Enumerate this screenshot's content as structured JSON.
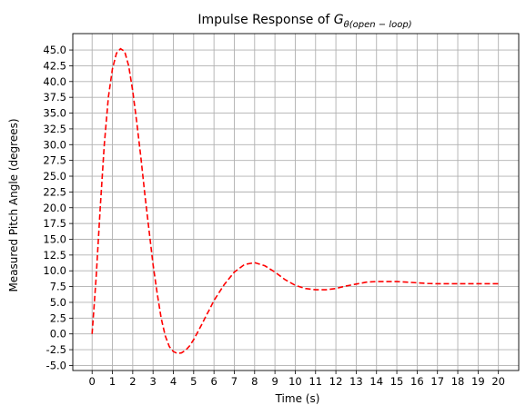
{
  "chart_data": {
    "type": "line",
    "title": {
      "prefix": "Impulse Response of ",
      "symbol": "G",
      "subscript": "θ(open − loop)"
    },
    "xlabel": "Time (s)",
    "ylabel": "Measured Pitch Angle (degrees)",
    "xlim": [
      -0.95,
      21.0
    ],
    "ylim": [
      -5.8,
      47.6
    ],
    "xticks": [
      "0",
      "1",
      "2",
      "3",
      "4",
      "5",
      "6",
      "7",
      "8",
      "9",
      "10",
      "11",
      "12",
      "13",
      "14",
      "15",
      "16",
      "17",
      "18",
      "19",
      "20"
    ],
    "yticks": [
      "-5.0",
      "-2.5",
      "0.0",
      "2.5",
      "5.0",
      "7.5",
      "10.0",
      "12.5",
      "15.0",
      "17.5",
      "20.0",
      "22.5",
      "25.0",
      "27.5",
      "30.0",
      "32.5",
      "35.0",
      "37.5",
      "40.0",
      "42.5",
      "45.0"
    ],
    "grid": true,
    "colors": {
      "series": "#ff0000",
      "grid": "#b0b0b0"
    },
    "series": [
      {
        "line_style": "dashed",
        "x": [
          0,
          0.2,
          0.4,
          0.6,
          0.8,
          1.0,
          1.2,
          1.4,
          1.6,
          1.8,
          2.0,
          2.2,
          2.4,
          2.6,
          2.8,
          3.0,
          3.2,
          3.4,
          3.6,
          3.8,
          4.0,
          4.2,
          4.4,
          4.6,
          4.8,
          5.0,
          5.2,
          5.4,
          5.6,
          5.8,
          6.0,
          6.5,
          7.0,
          7.5,
          8.0,
          8.5,
          9.0,
          9.5,
          10.0,
          10.5,
          11.0,
          11.5,
          12.0,
          12.5,
          13.0,
          13.5,
          14.0,
          14.5,
          15.0,
          15.5,
          16.0,
          16.5,
          17.0,
          17.5,
          18.0,
          18.5,
          19.0,
          19.5,
          20.0
        ],
        "y": [
          0,
          9,
          20,
          30,
          37.5,
          42,
          44.5,
          45.2,
          44.8,
          42.5,
          38.5,
          33.5,
          28,
          22,
          16.5,
          11,
          6.5,
          2.5,
          -0.3,
          -2.0,
          -2.8,
          -3.1,
          -3.0,
          -2.6,
          -1.9,
          -0.9,
          0.3,
          1.5,
          2.8,
          4.0,
          5.3,
          7.8,
          9.8,
          11.0,
          11.3,
          10.8,
          9.8,
          8.6,
          7.7,
          7.2,
          7.0,
          7.0,
          7.2,
          7.6,
          7.9,
          8.2,
          8.3,
          8.3,
          8.3,
          8.2,
          8.1,
          8.0,
          7.95,
          7.95,
          7.95,
          7.95,
          7.95,
          7.95,
          7.95
        ]
      }
    ]
  }
}
